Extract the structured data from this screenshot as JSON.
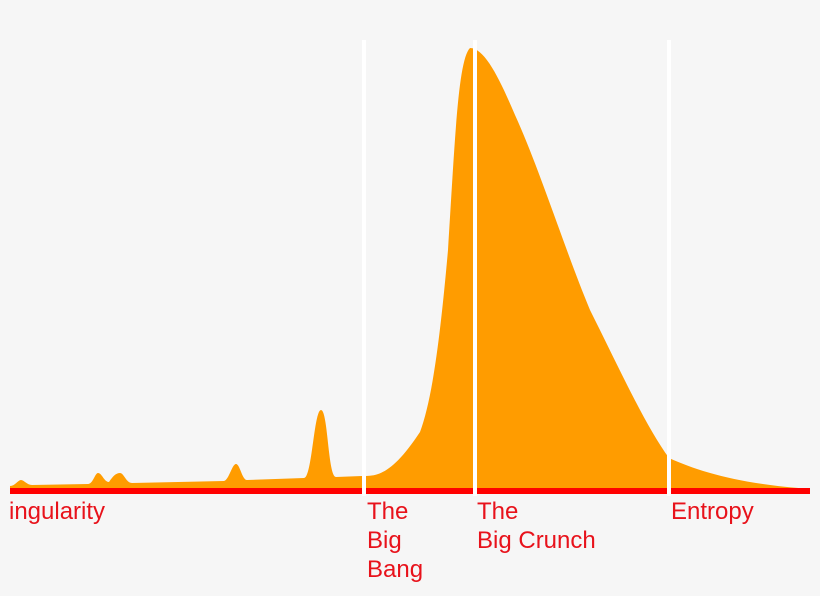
{
  "colors": {
    "background": "#f6f6f6",
    "curve": "#ff9c00",
    "baseline": "#ff0000",
    "divider": "#ffffff",
    "label": "#e8121b"
  },
  "labels": {
    "singularity": "ingularity",
    "big_bang": "The\nBig\nBang",
    "big_crunch": "The\nBig Crunch",
    "entropy": "Entropy"
  }
}
